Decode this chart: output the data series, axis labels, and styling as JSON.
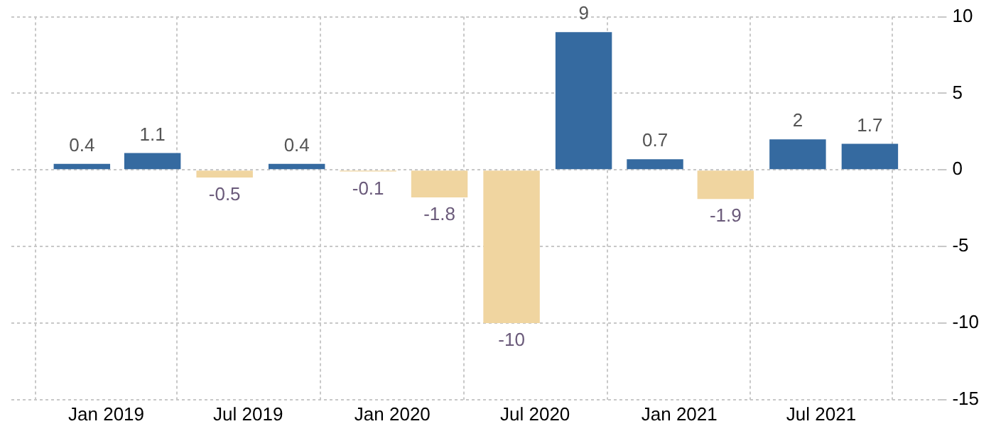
{
  "chart_data": {
    "type": "bar",
    "x": [
      "2018-12-01",
      "2019-03-01",
      "2019-06-01",
      "2019-09-01",
      "2019-12-01",
      "2020-03-01",
      "2020-06-01",
      "2020-09-01",
      "2020-12-01",
      "2021-03-01",
      "2021-06-01",
      "2021-09-01"
    ],
    "values": [
      0.4,
      1.1,
      -0.5,
      0.4,
      -0.1,
      -1.8,
      -10,
      9,
      0.7,
      -1.9,
      2,
      1.7
    ],
    "colors": [
      "#356aa0",
      "#356aa0",
      "#f0d5a0",
      "#356aa0",
      "#f0d5a0",
      "#f0d5a0",
      "#f0d5a0",
      "#356aa0",
      "#356aa0",
      "#f0d5a0",
      "#356aa0",
      "#356aa0"
    ],
    "data_labels": true,
    "xlim": [
      "2018-09-02",
      "2021-11-27"
    ],
    "xticks": [
      {
        "value": "2019-01",
        "label": "Jan 2019"
      },
      {
        "value": "2019-07",
        "label": "Jul 2019"
      },
      {
        "value": "2020-01",
        "label": "Jan 2020"
      },
      {
        "value": "2020-07",
        "label": "Jul 2020"
      },
      {
        "value": "2021-01",
        "label": "Jan 2021"
      },
      {
        "value": "2021-07",
        "label": "Jul 2021"
      }
    ],
    "ylim": [
      -15,
      10
    ],
    "yticks": [
      -15,
      -10,
      -5,
      0,
      5,
      10
    ],
    "grid": true,
    "legend": false
  }
}
